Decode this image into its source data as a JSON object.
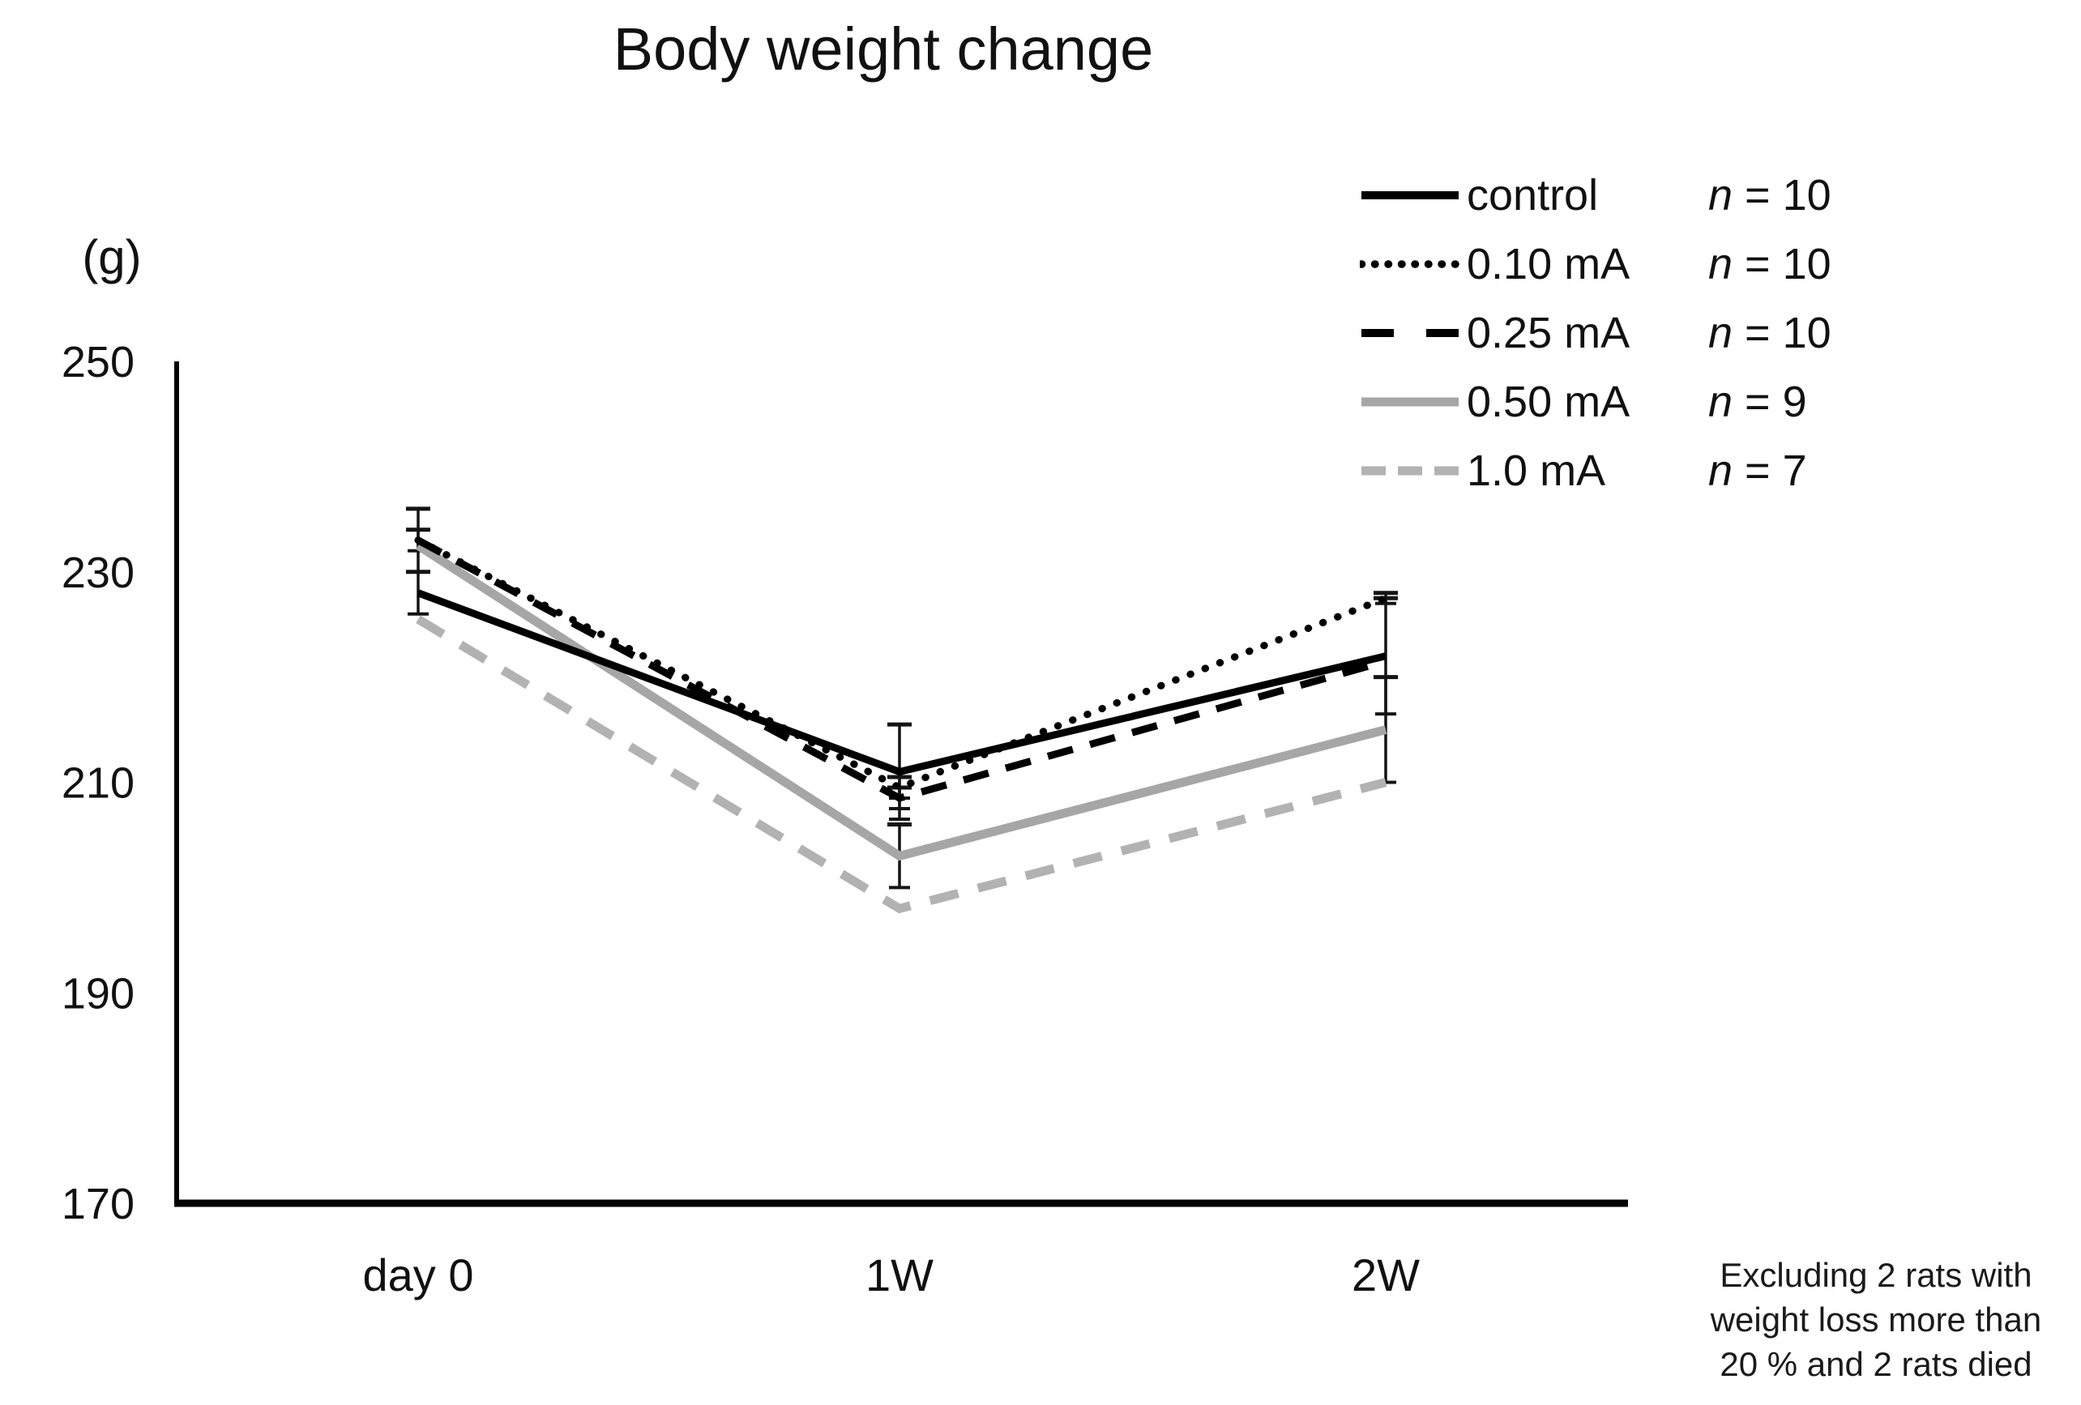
{
  "chart": {
    "title": "Body weight change",
    "y_unit": "(g)"
  },
  "chart_data": {
    "type": "line",
    "title": "Body weight change",
    "ylabel": "(g)",
    "categories": [
      "day 0",
      "1W",
      "2W"
    ],
    "y_ticks": [
      250,
      230,
      210,
      190,
      170
    ],
    "ylim": [
      170,
      250
    ],
    "grid": false,
    "legend_position": "top-right",
    "series": [
      {
        "name": "control",
        "n": 10,
        "line_style": "solid",
        "color": "#000000",
        "values": [
          228,
          211,
          222
        ],
        "errors": [
          2,
          4.5,
          5.5
        ]
      },
      {
        "name": "0.10 mA",
        "n": 10,
        "line_style": "dotted",
        "color": "#000000",
        "values": [
          233,
          209.5,
          227.5
        ],
        "errors": [
          3,
          1,
          0.5
        ]
      },
      {
        "name": "0.25 mA",
        "n": 10,
        "line_style": "dashed",
        "color": "#000000",
        "values": [
          233,
          208.5,
          221.5
        ],
        "errors": [
          1,
          1,
          0
        ]
      },
      {
        "name": "0.50 mA",
        "n": 9,
        "line_style": "solid",
        "color": "#a6a6a6",
        "values": [
          232.5,
          203,
          215
        ],
        "errors": [
          0,
          3,
          5
        ]
      },
      {
        "name": "1.0 mA",
        "n": 7,
        "line_style": "dashed",
        "color": "#b2b2b2",
        "values": [
          225.5,
          198,
          210
        ],
        "errors": [
          0,
          0,
          0
        ]
      }
    ]
  },
  "legend": {
    "items": [
      {
        "label": "control",
        "n_label": "n = 10"
      },
      {
        "label": "0.10 mA",
        "n_label": "n = 10"
      },
      {
        "label": "0.25 mA",
        "n_label": "n = 10"
      },
      {
        "label": "0.50 mA",
        "n_label": "n = 9"
      },
      {
        "label": "1.0 mA",
        "n_label": "n = 7"
      }
    ]
  },
  "note": {
    "lines": [
      "Excluding 2 rats with",
      "weight loss more than",
      "20 % and 2 rats died"
    ]
  }
}
